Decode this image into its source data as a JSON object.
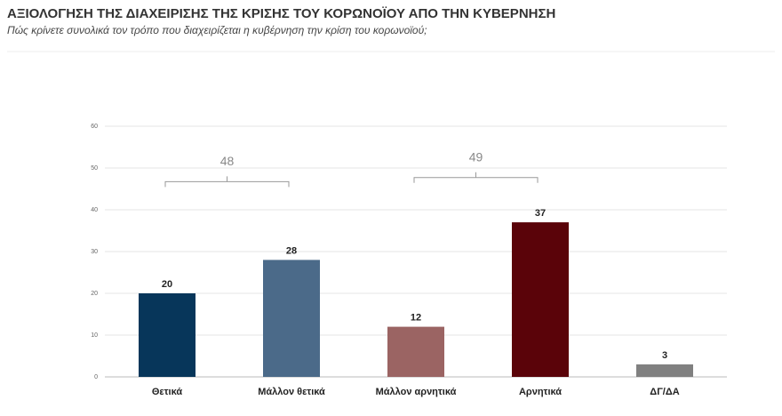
{
  "chart_data": {
    "type": "bar",
    "title": "ΑΞΙΟΛΟΓΗΣΗ ΤΗΣ ΔΙΑΧΕΙΡΙΣΗΣ ΤΗΣ ΚΡΙΣΗΣ ΤΟΥ ΚΟΡΩΝΟΪΟΥ ΑΠΟ ΤΗΝ ΚΥΒΕΡΝΗΣΗ",
    "subtitle": "Πώς κρίνετε συνολικά τον τρόπο που διαχειρίζεται η κυβέρνηση την κρίση του κορωνοϊού;",
    "categories": [
      "Θετικά",
      "Μάλλον θετικά",
      "Μάλλον αρνητικά",
      "Αρνητικά",
      "ΔΓ/ΔΑ"
    ],
    "values": [
      20,
      28,
      12,
      37,
      3
    ],
    "colors": [
      "#07365a",
      "#4b6a89",
      "#9b6463",
      "#5a0309",
      "#808080"
    ],
    "ylim": [
      0,
      60
    ],
    "yticks": [
      0,
      10,
      20,
      30,
      40,
      50,
      60
    ],
    "grid": true,
    "brackets": [
      {
        "value": 48,
        "span": [
          0,
          1
        ]
      },
      {
        "value": 49,
        "span": [
          2,
          3
        ]
      }
    ]
  }
}
